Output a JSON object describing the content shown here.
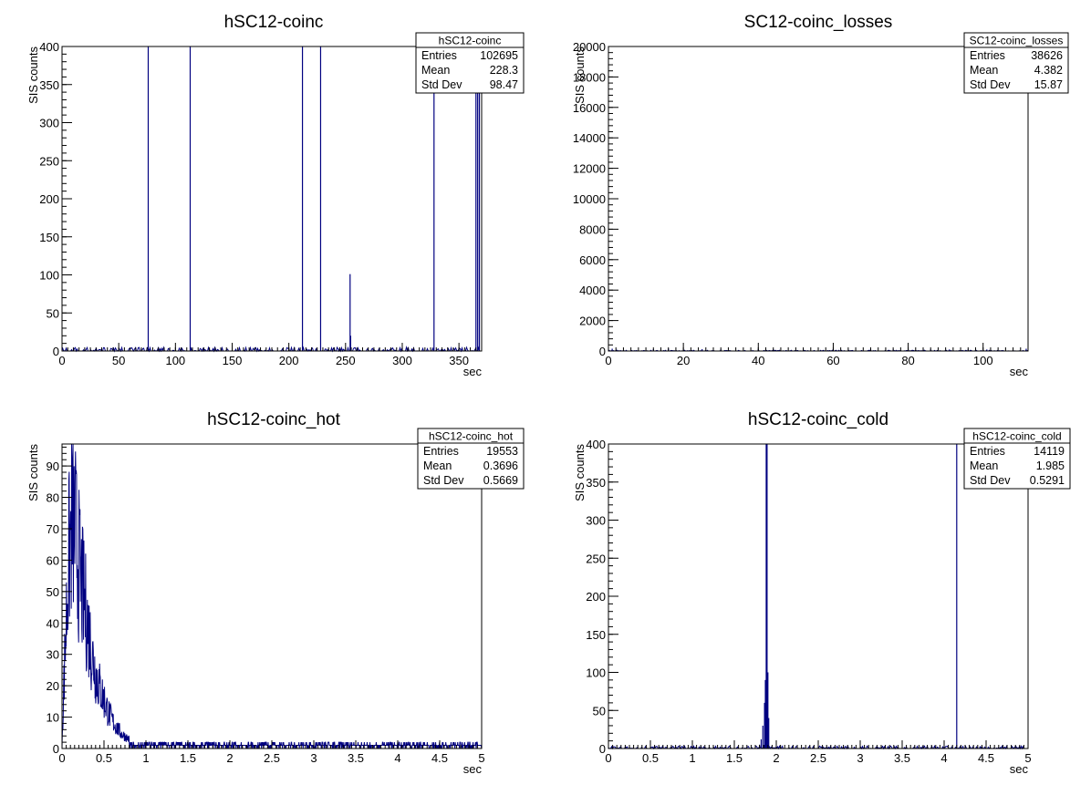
{
  "chart_data": [
    {
      "type": "bar",
      "title": "hSC12-coinc",
      "xlabel": "sec",
      "ylabel": "SIS counts",
      "xlim": [
        0,
        370
      ],
      "ylim": [
        0,
        400
      ],
      "x_ticks": [
        0,
        50,
        100,
        150,
        200,
        250,
        300,
        350
      ],
      "y_ticks": [
        0,
        50,
        100,
        150,
        200,
        250,
        300,
        350,
        400
      ],
      "baseline": 3,
      "spikes": [
        {
          "x": 76,
          "y": 400
        },
        {
          "x": 113,
          "y": 400
        },
        {
          "x": 212,
          "y": 400
        },
        {
          "x": 228,
          "y": 400
        },
        {
          "x": 254,
          "y": 101
        },
        {
          "x": 254.5,
          "y": 20
        },
        {
          "x": 328,
          "y": 400
        },
        {
          "x": 365,
          "y": 400
        },
        {
          "x": 366.5,
          "y": 400
        },
        {
          "x": 368,
          "y": 400
        }
      ],
      "stats": {
        "name": "hSC12-coinc",
        "rows": [
          {
            "label": "Entries",
            "value": "102695"
          },
          {
            "label": "Mean",
            "value": "228.3"
          },
          {
            "label": "Std Dev",
            "value": "98.47"
          }
        ]
      },
      "color": "#000080"
    },
    {
      "type": "bar",
      "title": "SC12-coinc_losses",
      "xlabel": "sec",
      "ylabel": "SIS counts",
      "xlim": [
        0,
        112
      ],
      "ylim": [
        0,
        20000
      ],
      "x_ticks": [
        0,
        20,
        40,
        60,
        80,
        100
      ],
      "y_ticks": [
        0,
        2000,
        4000,
        6000,
        8000,
        10000,
        12000,
        14000,
        16000,
        18000,
        20000
      ],
      "baseline": 30,
      "spikes": [
        {
          "x": 1,
          "y": 150
        },
        {
          "x": 12,
          "y": 120
        },
        {
          "x": 16,
          "y": 150
        },
        {
          "x": 25,
          "y": 120
        },
        {
          "x": 30,
          "y": 100
        },
        {
          "x": 40,
          "y": 120
        },
        {
          "x": 44,
          "y": 100
        },
        {
          "x": 52,
          "y": 100
        },
        {
          "x": 60,
          "y": 110
        },
        {
          "x": 70,
          "y": 100
        },
        {
          "x": 76,
          "y": 100
        },
        {
          "x": 80,
          "y": 100
        },
        {
          "x": 86,
          "y": 100
        },
        {
          "x": 91,
          "y": 100
        },
        {
          "x": 96,
          "y": 100
        },
        {
          "x": 101,
          "y": 100
        },
        {
          "x": 111.5,
          "y": 150
        }
      ],
      "stats": {
        "name": "SC12-coinc_losses",
        "rows": [
          {
            "label": "Entries",
            "value": "38626"
          },
          {
            "label": "Mean",
            "value": "4.382"
          },
          {
            "label": "Std Dev",
            "value": "15.87"
          }
        ]
      },
      "color": "#000080"
    },
    {
      "type": "bar",
      "title": "hSC12-coinc_hot",
      "xlabel": "sec",
      "ylabel": "SIS counts",
      "xlim": [
        0,
        5
      ],
      "ylim": [
        0,
        97
      ],
      "x_ticks": [
        0,
        0.5,
        1,
        1.5,
        2,
        2.5,
        3,
        3.5,
        4,
        4.5,
        5
      ],
      "x_tick_labels": [
        "0",
        "0.5",
        "1",
        "1.5",
        "2",
        "2.5",
        "3",
        "3.5",
        "4",
        "4.5",
        "5"
      ],
      "y_ticks": [
        0,
        10,
        20,
        30,
        40,
        50,
        60,
        70,
        80,
        90
      ],
      "envelope": [
        {
          "x": 0.0,
          "y": 3
        },
        {
          "x": 0.04,
          "y": 35
        },
        {
          "x": 0.08,
          "y": 62
        },
        {
          "x": 0.12,
          "y": 75
        },
        {
          "x": 0.16,
          "y": 70
        },
        {
          "x": 0.2,
          "y": 60
        },
        {
          "x": 0.25,
          "y": 50
        },
        {
          "x": 0.3,
          "y": 42
        },
        {
          "x": 0.35,
          "y": 32
        },
        {
          "x": 0.4,
          "y": 25
        },
        {
          "x": 0.45,
          "y": 20
        },
        {
          "x": 0.5,
          "y": 16
        },
        {
          "x": 0.55,
          "y": 12
        },
        {
          "x": 0.6,
          "y": 9
        },
        {
          "x": 0.7,
          "y": 5
        },
        {
          "x": 0.8,
          "y": 3
        },
        {
          "x": 0.9,
          "y": 2
        },
        {
          "x": 1.0,
          "y": 1
        },
        {
          "x": 5.0,
          "y": 1
        }
      ],
      "stats": {
        "name": "hSC12-coinc_hot",
        "rows": [
          {
            "label": "Entries",
            "value": "19553"
          },
          {
            "label": "Mean",
            "value": "0.3696"
          },
          {
            "label": "Std Dev",
            "value": "0.5669"
          }
        ]
      },
      "color": "#000080"
    },
    {
      "type": "bar",
      "title": "hSC12-coinc_cold",
      "xlabel": "sec",
      "ylabel": "SIS counts",
      "xlim": [
        0,
        5
      ],
      "ylim": [
        0,
        400
      ],
      "x_ticks": [
        0,
        0.5,
        1,
        1.5,
        2,
        2.5,
        3,
        3.5,
        4,
        4.5,
        5
      ],
      "x_tick_labels": [
        "0",
        "0.5",
        "1",
        "1.5",
        "2",
        "2.5",
        "3",
        "3.5",
        "4",
        "4.5",
        "5"
      ],
      "y_ticks": [
        0,
        50,
        100,
        150,
        200,
        250,
        300,
        350,
        400
      ],
      "baseline": 2,
      "spikes": [
        {
          "x": 1.8,
          "y": 5
        },
        {
          "x": 1.82,
          "y": 12
        },
        {
          "x": 1.84,
          "y": 30
        },
        {
          "x": 1.86,
          "y": 60
        },
        {
          "x": 1.87,
          "y": 90
        },
        {
          "x": 1.88,
          "y": 400
        },
        {
          "x": 1.89,
          "y": 400
        },
        {
          "x": 1.9,
          "y": 100
        },
        {
          "x": 1.91,
          "y": 40
        },
        {
          "x": 4.15,
          "y": 400
        }
      ],
      "stats": {
        "name": "hSC12-coinc_cold",
        "rows": [
          {
            "label": "Entries",
            "value": "14119"
          },
          {
            "label": "Mean",
            "value": "1.985"
          },
          {
            "label": "Std Dev",
            "value": "0.5291"
          }
        ]
      },
      "color": "#000080"
    }
  ]
}
